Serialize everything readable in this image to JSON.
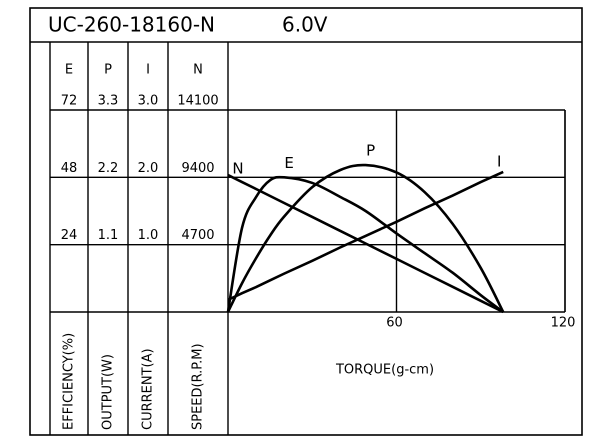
{
  "chart_data": {
    "type": "line",
    "title": "UC-260-18160-N",
    "voltage": "6.0V",
    "xlabel": "TORQUE(g-cm)",
    "xlim": [
      0,
      120
    ],
    "xticks": [
      60,
      120
    ],
    "axes": [
      {
        "name": "E",
        "title": "EFFICIENCY(%)",
        "ylim": [
          0,
          72
        ],
        "yticks": [
          24,
          48,
          72
        ]
      },
      {
        "name": "P",
        "title": "OUTPUT(W)",
        "ylim": [
          0,
          3.3
        ],
        "yticks": [
          1.1,
          2.2,
          3.3
        ]
      },
      {
        "name": "I",
        "title": "CURRENT(A)",
        "ylim": [
          0,
          3.0
        ],
        "yticks": [
          {
            "value": 1,
            "label": "1.0"
          },
          {
            "value": 2,
            "label": "2.0"
          },
          {
            "value": 3,
            "label": "3.0"
          }
        ]
      },
      {
        "name": "N",
        "title": "SPEED(R.P.M)",
        "ylim": [
          0,
          14100
        ],
        "yticks": [
          4700,
          9400,
          14100
        ]
      }
    ],
    "x": [
      0,
      5,
      10,
      15,
      20,
      30,
      40,
      49,
      60,
      70,
      80,
      90,
      98
    ],
    "series": [
      {
        "name": "N",
        "color": "#000000",
        "values": [
          9560,
          9072,
          8584,
          8097,
          7609,
          6633,
          5658,
          4780,
          3707,
          2731,
          1756,
          780,
          0
        ]
      },
      {
        "name": "E",
        "color": "#000000",
        "values": [
          0,
          30,
          41,
          47,
          48,
          46,
          41,
          36,
          28,
          21,
          14,
          6,
          0
        ]
      },
      {
        "name": "P",
        "color": "#000000",
        "values": [
          0,
          0.47,
          0.88,
          1.25,
          1.56,
          2.04,
          2.32,
          2.4,
          2.28,
          1.96,
          1.44,
          0.72,
          0
        ]
      },
      {
        "name": "I",
        "color": "#000000",
        "values": [
          0.18,
          0.28,
          0.37,
          0.47,
          0.57,
          0.76,
          0.96,
          1.13,
          1.34,
          1.54,
          1.73,
          1.93,
          2.08
        ]
      }
    ]
  }
}
